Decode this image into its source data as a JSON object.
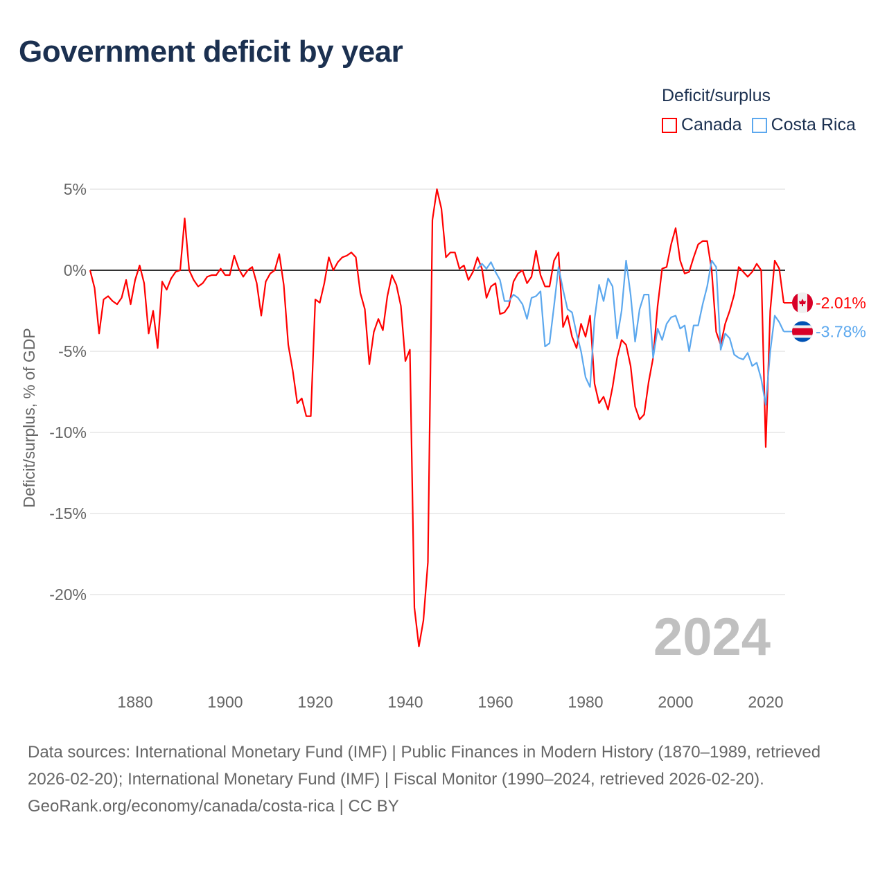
{
  "title": "Government deficit by year",
  "legend": {
    "title": "Deficit/surplus",
    "items": [
      {
        "label": "Canada",
        "color": "#ff0000"
      },
      {
        "label": "Costa Rica",
        "color": "#5ca8ee"
      }
    ]
  },
  "watermark_year": "2024",
  "footer": {
    "sources": "Data sources: International Monetary Fund (IMF) | Public Finances in Modern History (1870–1989, retrieved 2026-02-20); International Monetary Fund (IMF) | Fiscal Monitor (1990–2024, retrieved 2026-02-20).",
    "credit": "GeoRank.org/economy/canada/costa-rica | CC BY"
  },
  "chart_data": {
    "type": "line",
    "title": "Government deficit by year",
    "xlabel": "",
    "ylabel": "Deficit/surplus, % of GDP",
    "xlim": [
      1870,
      2024
    ],
    "ylim": [
      -25,
      5
    ],
    "x_ticks": [
      1880,
      1900,
      1920,
      1940,
      1960,
      1980,
      2000,
      2020
    ],
    "y_ticks": [
      5,
      0,
      -5,
      -10,
      -15,
      -20
    ],
    "y_tick_labels": [
      "5%",
      "0%",
      "-5%",
      "-10%",
      "-15%",
      "-20%"
    ],
    "grid": true,
    "legend_position": "top-right",
    "series": [
      {
        "name": "Canada",
        "color": "#ff0000",
        "start_year": 1870,
        "end_label": "-2.01%",
        "values": [
          0,
          -1.1,
          -3.9,
          -1.8,
          -1.6,
          -1.9,
          -2.1,
          -1.7,
          -0.6,
          -2.1,
          -0.6,
          0.3,
          -0.8,
          -3.9,
          -2.5,
          -4.8,
          -0.7,
          -1.2,
          -0.5,
          -0.1,
          0,
          3.2,
          0,
          -0.6,
          -1.0,
          -0.8,
          -0.4,
          -0.3,
          -0.3,
          0.1,
          -0.3,
          -0.3,
          0.9,
          0.1,
          -0.4,
          0,
          0.2,
          -0.8,
          -2.8,
          -0.7,
          -0.2,
          0,
          1.0,
          -0.9,
          -4.6,
          -6.2,
          -8.2,
          -7.9,
          -9.0,
          -9.0,
          -1.8,
          -2.0,
          -0.8,
          0.8,
          0,
          0.5,
          0.8,
          0.9,
          1.1,
          0.8,
          -1.4,
          -2.4,
          -5.8,
          -3.8,
          -3.0,
          -3.7,
          -1.6,
          -0.3,
          -0.9,
          -2.2,
          -5.6,
          -4.9,
          -20.8,
          -23.2,
          -21.6,
          -18.0,
          3.1,
          5.0,
          3.8,
          0.8,
          1.1,
          1.1,
          0.1,
          0.3,
          -0.6,
          -0.1,
          0.8,
          0.1,
          -1.7,
          -1.0,
          -0.8,
          -2.7,
          -2.6,
          -2.2,
          -0.7,
          -0.2,
          0,
          -0.8,
          -0.4,
          1.2,
          -0.3,
          -1.0,
          -1.0,
          0.6,
          1.1,
          -3.5,
          -2.8,
          -4.1,
          -4.8,
          -3.3,
          -4.1,
          -2.8,
          -7.0,
          -8.2,
          -7.8,
          -8.6,
          -7.2,
          -5.4,
          -4.3,
          -4.6,
          -5.9,
          -8.4,
          -9.2,
          -8.9,
          -6.9,
          -5.4,
          -2.2,
          0.1,
          0.2,
          1.6,
          2.6,
          0.6,
          -0.2,
          -0.1,
          0.8,
          1.6,
          1.8,
          1.8,
          0,
          -3.8,
          -4.6,
          -3.3,
          -2.5,
          -1.5,
          0.2,
          -0.1,
          -0.4,
          -0.1,
          0.4,
          0,
          -10.9,
          -2.5,
          0.6,
          0.1,
          -2.01
        ]
      },
      {
        "name": "Costa Rica",
        "color": "#5ca8ee",
        "start_year": 1956,
        "end_label": "-3.78%",
        "values": [
          0.1,
          0.4,
          0.1,
          0.5,
          -0.1,
          -0.6,
          -1.9,
          -1.9,
          -1.5,
          -1.7,
          -2.1,
          -3.0,
          -1.7,
          -1.6,
          -1.3,
          -4.7,
          -4.5,
          -2.2,
          0.2,
          -1.2,
          -2.4,
          -2.6,
          -3.9,
          -5.0,
          -6.6,
          -7.2,
          -3.0,
          -0.9,
          -1.9,
          -0.5,
          -1.0,
          -4.2,
          -2.5,
          0.6,
          -1.5,
          -4.4,
          -2.4,
          -1.5,
          -1.5,
          -5.4,
          -3.6,
          -4.3,
          -3.3,
          -2.9,
          -2.8,
          -3.6,
          -3.4,
          -5.0,
          -3.4,
          -3.4,
          -2.1,
          -1.0,
          0.6,
          0.2,
          -4.9,
          -3.9,
          -4.2,
          -5.2,
          -5.4,
          -5.5,
          -5.1,
          -5.9,
          -5.7,
          -6.7,
          -8.3,
          -5.0,
          -2.8,
          -3.2,
          -3.78
        ]
      }
    ]
  }
}
